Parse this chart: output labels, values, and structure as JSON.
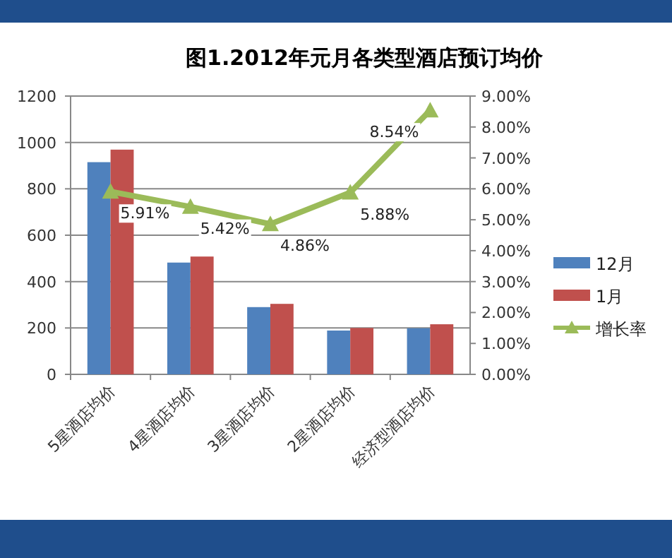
{
  "chart_data": {
    "type": "bar",
    "title": "图1.2012年元月各类型酒店预订均价",
    "categories": [
      "5星酒店均价",
      "4星酒店均价",
      "3星酒店均价",
      "2星酒店均价",
      "经济型酒店均价"
    ],
    "series": [
      {
        "name": "12月",
        "color": "#4f81bd",
        "values": [
          915,
          482,
          290,
          189,
          199
        ]
      },
      {
        "name": "1月",
        "color": "#c0504d",
        "values": [
          969,
          508,
          304,
          200,
          216
        ]
      },
      {
        "name": "增长率",
        "type": "line",
        "axis": "y2",
        "color": "#9bbb59",
        "marker": "triangle",
        "values": [
          5.91,
          5.42,
          4.86,
          5.88,
          8.54
        ],
        "value_labels": [
          "5.91%",
          "5.42%",
          "4.86%",
          "5.88%",
          "8.54%"
        ]
      }
    ],
    "ylim": [
      0,
      1200
    ],
    "yticks": [
      0,
      200,
      400,
      600,
      800,
      1000,
      1200
    ],
    "y2lim": [
      0,
      9
    ],
    "y2ticks": [
      {
        "value": 0,
        "label": "0.00%"
      },
      {
        "value": 1,
        "label": "1.00%"
      },
      {
        "value": 2,
        "label": "2.00%"
      },
      {
        "value": 3,
        "label": "3.00%"
      },
      {
        "value": 4,
        "label": "4.00%"
      },
      {
        "value": 5,
        "label": "5.00%"
      },
      {
        "value": 6,
        "label": "6.00%"
      },
      {
        "value": 7,
        "label": "7.00%"
      },
      {
        "value": 8,
        "label": "8.00%"
      },
      {
        "value": 9,
        "label": "9.00%"
      }
    ],
    "grid": "y",
    "legend": "right"
  }
}
